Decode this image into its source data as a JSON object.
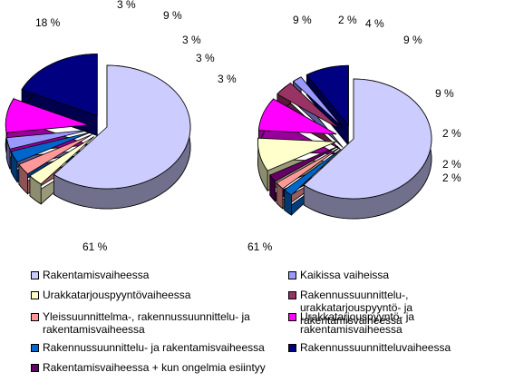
{
  "chart_data": [
    {
      "type": "pie",
      "categories": [
        "Rakentamisvaiheessa",
        "Urakkatarjouspyyntövaiheessa",
        "Yleissuunnittelma-, rakennussuunnittelu- ja rakentamisvaiheessa",
        "Rakennussuunnittelu- ja rakentamisvaiheessa",
        "Rakentamisvaiheessa + kun ongelmia esiintyy",
        "Kaikissa vaiheissa",
        "Rakennussuunnittelu-, urakkatarjouspyyntö- ja rakentamisvaiheessa",
        "Urakkatarjouspyyntö- ja rakentamisvaiheessa",
        "Rakennussuunnitteluvaiheessa"
      ],
      "values": [
        61,
        3,
        3,
        3,
        0,
        3,
        0,
        9,
        18
      ],
      "labels": [
        "61 %",
        "3 %",
        "3 %",
        "3 %",
        "",
        "3 %",
        "",
        "9 %",
        "18 %"
      ],
      "colors": [
        "#ccccff",
        "#ffffcc",
        "#ff9999",
        "#0066cc",
        "#660066",
        "#9999ff",
        "#993366",
        "#ff00ff",
        "#000080"
      ]
    },
    {
      "type": "pie",
      "categories": [
        "Rakentamisvaiheessa",
        "Rakennussuunnittelu- ja rakentamisvaiheessa",
        "Yleissuunnittelma-, rakennussuunnittelu- ja rakentamisvaiheessa",
        "Rakentamisvaiheessa + kun ongelmia esiintyy",
        "Urakkatarjouspyyntövaiheessa",
        "Urakkatarjouspyyntö- ja rakentamisvaiheessa",
        "Rakennussuunnittelu-, urakkatarjouspyyntö- ja rakentamisvaiheessa",
        "Kaikissa vaiheissa",
        "Rakennussuunnitteluvaiheessa"
      ],
      "values": [
        61,
        2,
        2,
        2,
        9,
        9,
        4,
        2,
        9
      ],
      "labels": [
        "61 %",
        "2 %",
        "2 %",
        "2 %",
        "9 %",
        "9 %",
        "4 %",
        "2 %",
        "9 %"
      ],
      "colors": [
        "#ccccff",
        "#0066cc",
        "#ff9999",
        "#660066",
        "#ffffcc",
        "#ff00ff",
        "#993366",
        "#9999ff",
        "#000080"
      ]
    }
  ],
  "legend": [
    {
      "label": "Rakentamisvaiheessa",
      "color": "#ccccff"
    },
    {
      "label": "Kaikissa vaiheissa",
      "color": "#9999ff"
    },
    {
      "label": "Urakkatarjouspyyntövaiheessa",
      "color": "#ffffcc"
    },
    {
      "label": "Rakennussuunnittelu-, urakkatarjouspyyntö- ja rakentamisvaiheessa",
      "color": "#993366"
    },
    {
      "label": "Yleissuunnittelma-, rakennussuunnittelu- ja rakentamisvaiheessa",
      "color": "#ff9999"
    },
    {
      "label": "Urakkatarjouspyyntö- ja rakentamisvaiheessa",
      "color": "#ff00ff"
    },
    {
      "label": "Rakennussuunnittelu- ja rakentamisvaiheessa",
      "color": "#0066cc"
    },
    {
      "label": "Rakennussuunnitteluvaiheessa",
      "color": "#000080"
    },
    {
      "label": "Rakentamisvaiheessa + kun ongelmia esiintyy",
      "color": "#660066"
    }
  ]
}
